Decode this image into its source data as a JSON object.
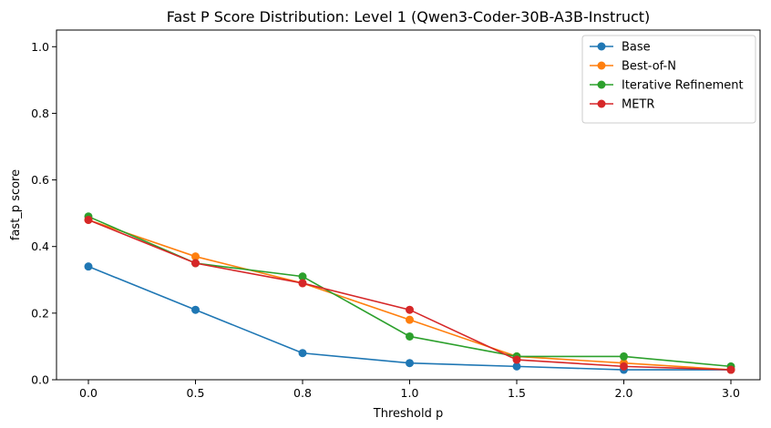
{
  "chart_data": {
    "type": "line",
    "title": "Fast P Score Distribution: Level 1 (Qwen3-Coder-30B-A3B-Instruct)",
    "xlabel": "Threshold p",
    "ylabel": "fast_p score",
    "categories": [
      "0.0",
      "0.5",
      "0.8",
      "1.0",
      "1.5",
      "2.0",
      "3.0"
    ],
    "ylim": [
      0,
      1.05
    ],
    "yticks": [
      "0.0",
      "0.2",
      "0.4",
      "0.6",
      "0.8",
      "1.0"
    ],
    "grid": false,
    "legend_position": "top-right",
    "series": [
      {
        "name": "Base",
        "color": "#1f77b4",
        "values": [
          0.34,
          0.21,
          0.08,
          0.05,
          0.04,
          0.03,
          0.03
        ]
      },
      {
        "name": "Best-of-N",
        "color": "#ff7f0e",
        "values": [
          0.48,
          0.37,
          0.29,
          0.18,
          0.07,
          0.05,
          0.03
        ]
      },
      {
        "name": "Iterative Refinement",
        "color": "#2ca02c",
        "values": [
          0.49,
          0.35,
          0.31,
          0.13,
          0.07,
          0.07,
          0.04
        ]
      },
      {
        "name": "METR",
        "color": "#d62728",
        "values": [
          0.48,
          0.35,
          0.29,
          0.21,
          0.06,
          0.04,
          0.03
        ]
      }
    ]
  }
}
